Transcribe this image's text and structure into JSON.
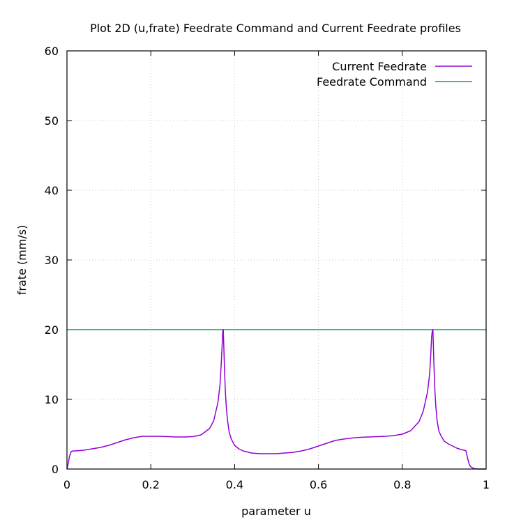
{
  "chart_data": {
    "type": "line",
    "title": "Plot 2D (u,frate) Feedrate Command and Current Feedrate profiles",
    "xlabel": "parameter u",
    "ylabel": "frate (mm/s)",
    "xlim": [
      0,
      1
    ],
    "ylim": [
      0,
      60
    ],
    "x_ticks": [
      0,
      0.2,
      0.4,
      0.6,
      0.8,
      1
    ],
    "x_tick_labels": [
      "0",
      "0.2",
      "0.4",
      "0.6",
      "0.8",
      "1"
    ],
    "y_ticks": [
      0,
      10,
      20,
      30,
      40,
      50,
      60
    ],
    "y_tick_labels": [
      "0",
      "10",
      "20",
      "30",
      "40",
      "50",
      "60"
    ],
    "grid": true,
    "legend_position": "top-right",
    "series": [
      {
        "name": "Current Feedrate",
        "color": "#9400d3",
        "x": [
          0,
          0.003,
          0.006,
          0.01,
          0.015,
          0.02,
          0.04,
          0.06,
          0.08,
          0.1,
          0.12,
          0.14,
          0.16,
          0.18,
          0.2,
          0.22,
          0.24,
          0.26,
          0.28,
          0.3,
          0.32,
          0.34,
          0.35,
          0.36,
          0.365,
          0.368,
          0.37,
          0.372,
          0.373,
          0.374,
          0.376,
          0.378,
          0.38,
          0.383,
          0.387,
          0.392,
          0.4,
          0.41,
          0.42,
          0.44,
          0.46,
          0.48,
          0.5,
          0.52,
          0.54,
          0.56,
          0.58,
          0.6,
          0.62,
          0.64,
          0.66,
          0.68,
          0.7,
          0.72,
          0.74,
          0.76,
          0.78,
          0.8,
          0.82,
          0.84,
          0.85,
          0.86,
          0.865,
          0.868,
          0.87,
          0.872,
          0.873,
          0.874,
          0.876,
          0.878,
          0.88,
          0.883,
          0.887,
          0.892,
          0.9,
          0.91,
          0.92,
          0.93,
          0.94,
          0.948,
          0.952,
          0.956,
          0.96,
          0.964,
          0.968,
          0.972,
          0.976,
          0.98,
          0.985,
          0.99,
          1.0
        ],
        "y": [
          0,
          0.8,
          1.8,
          2.5,
          2.6,
          2.6,
          2.7,
          2.9,
          3.1,
          3.4,
          3.8,
          4.2,
          4.5,
          4.7,
          4.7,
          4.7,
          4.65,
          4.6,
          4.6,
          4.65,
          4.9,
          5.8,
          6.9,
          9.5,
          12.0,
          15.0,
          17.5,
          20.0,
          20.0,
          18.0,
          14.0,
          11.0,
          9.0,
          7.0,
          5.3,
          4.3,
          3.4,
          2.9,
          2.6,
          2.3,
          2.2,
          2.2,
          2.2,
          2.3,
          2.4,
          2.6,
          2.9,
          3.3,
          3.7,
          4.1,
          4.3,
          4.45,
          4.55,
          4.6,
          4.65,
          4.7,
          4.8,
          5.0,
          5.5,
          6.8,
          8.3,
          11.0,
          13.5,
          16.5,
          19.0,
          20.0,
          20.0,
          18.0,
          14.0,
          11.0,
          9.0,
          7.0,
          5.5,
          4.8,
          4.0,
          3.6,
          3.3,
          3.0,
          2.8,
          2.7,
          2.6,
          1.5,
          0.6,
          0.3,
          0.15,
          0.05,
          0.02,
          0,
          0,
          0,
          0
        ]
      },
      {
        "name": "Feedrate Command",
        "color": "#009e73",
        "x": [
          0,
          1
        ],
        "y": [
          20,
          20
        ]
      }
    ]
  }
}
